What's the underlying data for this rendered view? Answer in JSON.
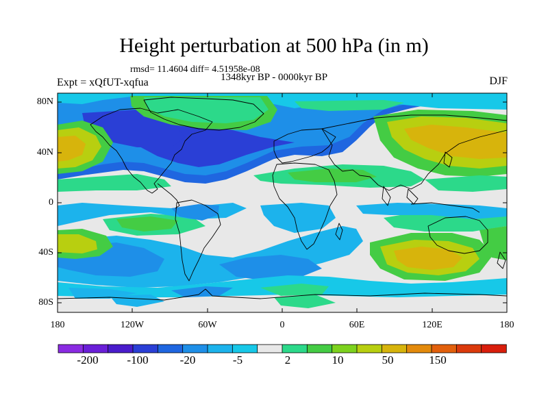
{
  "title": "Height perturbation at 500 hPa (in m)",
  "stats": "rmsd= 11.4604  diff= 4.51958e-08",
  "period": "1348kyr BP - 0000kyr BP",
  "expt": "Expt = xQfUT-xqfua",
  "season": "DJF",
  "lat_labels": [
    "80N",
    "40N",
    "0",
    "40S",
    "80S"
  ],
  "lon_labels": [
    "180",
    "120W",
    "60W",
    "0",
    "60E",
    "120E",
    "180"
  ],
  "colorbar": {
    "colors": [
      "#8a2be2",
      "#6a1fd8",
      "#4a1ccc",
      "#2a3fd6",
      "#1f66e0",
      "#1e8fe8",
      "#1cb3ec",
      "#17c8e8",
      "#e8e8e8",
      "#2cd98a",
      "#44cc44",
      "#7dd21e",
      "#b8cf10",
      "#d7b40c",
      "#e38a0c",
      "#e2600c",
      "#db3a0c",
      "#d91e0c"
    ],
    "labels": [
      "-200",
      "-100",
      "-20",
      "-5",
      "2",
      "10",
      "50",
      "150"
    ]
  },
  "colors": {
    "background": "#e8e8e8",
    "coast": "#000000"
  }
}
